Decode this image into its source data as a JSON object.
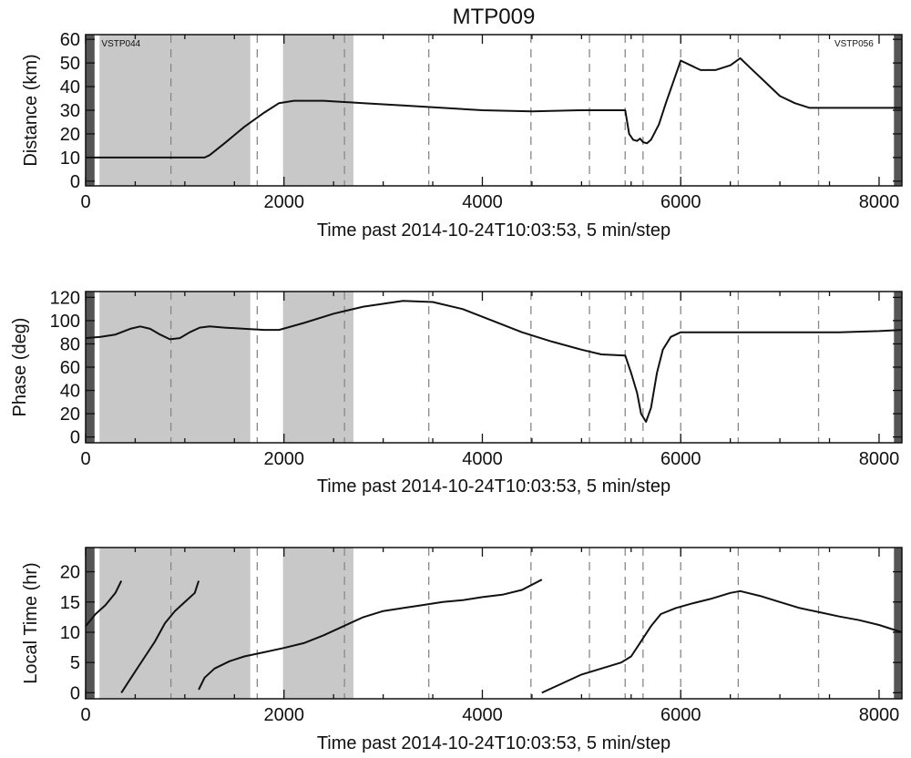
{
  "title": "MTP009",
  "shaded_intervals": [
    [
      140,
      1660
    ],
    [
      1990,
      2700
    ]
  ],
  "left_edge_bar": [
    0,
    90
  ],
  "right_edge_bar": [
    8150,
    8230
  ],
  "dashed_lines": [
    860,
    1730,
    2610,
    3460,
    4490,
    5080,
    5440,
    5620,
    6000,
    6580,
    7390
  ],
  "chart_data": [
    {
      "type": "line",
      "name": "distance",
      "xlabel": "Time past 2014-10-24T10:03:53, 5 min/step",
      "ylabel": "Distance (km)",
      "xlim": [
        0,
        8230
      ],
      "ylim": [
        -2,
        62
      ],
      "xticks": [
        0,
        2000,
        4000,
        6000,
        8000
      ],
      "yticks": [
        0,
        10,
        20,
        30,
        40,
        50,
        60
      ],
      "annotations": [
        {
          "text": "VSTP044",
          "x": 160,
          "y": 57
        },
        {
          "text": "VSTP056",
          "x": 7550,
          "y": 57
        }
      ],
      "x": [
        0,
        400,
        800,
        1200,
        1250,
        1400,
        1600,
        1800,
        1950,
        2100,
        2400,
        2800,
        3200,
        3600,
        4000,
        4500,
        5000,
        5300,
        5440,
        5480,
        5520,
        5560,
        5590,
        5620,
        5660,
        5700,
        5780,
        5850,
        5950,
        6000,
        6100,
        6200,
        6350,
        6500,
        6600,
        6700,
        6850,
        7000,
        7150,
        7300,
        7400,
        7600,
        7800,
        8000,
        8230
      ],
      "y": [
        10,
        10,
        10,
        10,
        11,
        16,
        23,
        29,
        33,
        34,
        34,
        33,
        32,
        31,
        30,
        29.5,
        30,
        30,
        30,
        20,
        17.5,
        17,
        18,
        16.5,
        16,
        17.5,
        24,
        33,
        45,
        51,
        49,
        47,
        47,
        49,
        52,
        48,
        42,
        36,
        33,
        31,
        31,
        31,
        31,
        31,
        31
      ]
    },
    {
      "type": "line",
      "name": "phase",
      "xlabel": "Time past 2014-10-24T10:03:53, 5 min/step",
      "ylabel": "Phase (deg)",
      "xlim": [
        0,
        8230
      ],
      "ylim": [
        -5,
        125
      ],
      "xticks": [
        0,
        2000,
        4000,
        6000,
        8000
      ],
      "yticks": [
        0,
        20,
        40,
        60,
        80,
        100,
        120
      ],
      "x": [
        0,
        150,
        300,
        450,
        550,
        650,
        750,
        850,
        950,
        1050,
        1150,
        1250,
        1400,
        1600,
        1800,
        1950,
        2200,
        2500,
        2800,
        3200,
        3500,
        3800,
        4100,
        4400,
        4700,
        5000,
        5200,
        5440,
        5500,
        5560,
        5600,
        5650,
        5700,
        5760,
        5820,
        5900,
        6000,
        6400,
        6800,
        7200,
        7600,
        8000,
        8230
      ],
      "y": [
        85,
        86,
        88,
        93,
        95,
        93,
        88,
        84,
        85,
        90,
        94,
        95,
        94,
        93,
        92,
        92,
        98,
        106,
        112,
        117,
        116,
        110,
        100,
        90,
        82,
        75,
        71,
        70,
        55,
        38,
        20,
        13,
        25,
        55,
        75,
        86,
        90,
        90,
        90,
        90,
        90,
        91,
        92
      ]
    },
    {
      "type": "line",
      "name": "local-time",
      "xlabel": "Time past 2014-10-24T10:03:53, 5 min/step",
      "ylabel": "Local Time (hr)",
      "xlim": [
        0,
        8230
      ],
      "ylim": [
        -1,
        24
      ],
      "xticks": [
        0,
        2000,
        4000,
        6000,
        8000
      ],
      "yticks": [
        0,
        5,
        10,
        15,
        20
      ],
      "segments": [
        {
          "x": [
            0,
            100,
            200,
            300,
            360
          ],
          "y": [
            11,
            13,
            14.5,
            16.5,
            18.5
          ]
        },
        {
          "x": [
            360,
            500,
            600,
            700,
            800,
            900,
            1000,
            1100,
            1140
          ],
          "y": [
            0,
            3.5,
            6,
            8.5,
            11.5,
            13.5,
            15,
            16.5,
            18.5
          ]
        },
        {
          "x": [
            1140,
            1200,
            1300,
            1450,
            1600,
            1800,
            2000,
            2200,
            2400,
            2600,
            2800,
            3000,
            3200,
            3400,
            3600,
            3800,
            4000,
            4200,
            4400,
            4600
          ],
          "y": [
            0.5,
            2.5,
            4,
            5.2,
            6,
            6.7,
            7.4,
            8.2,
            9.5,
            11,
            12.5,
            13.5,
            14,
            14.5,
            15,
            15.3,
            15.8,
            16.2,
            17,
            18.7
          ]
        },
        {
          "x": [
            4600,
            4800,
            5000,
            5200,
            5400,
            5500,
            5600,
            5700,
            5800,
            5950,
            6100,
            6300,
            6500,
            6600,
            6800,
            7000,
            7200,
            7400,
            7600,
            7800,
            8000,
            8230
          ],
          "y": [
            0,
            1.5,
            3,
            4,
            5,
            6,
            8.5,
            11,
            13,
            14,
            14.7,
            15.5,
            16.5,
            16.8,
            16,
            15,
            14,
            13.3,
            12.6,
            12,
            11.2,
            10
          ]
        }
      ]
    }
  ]
}
